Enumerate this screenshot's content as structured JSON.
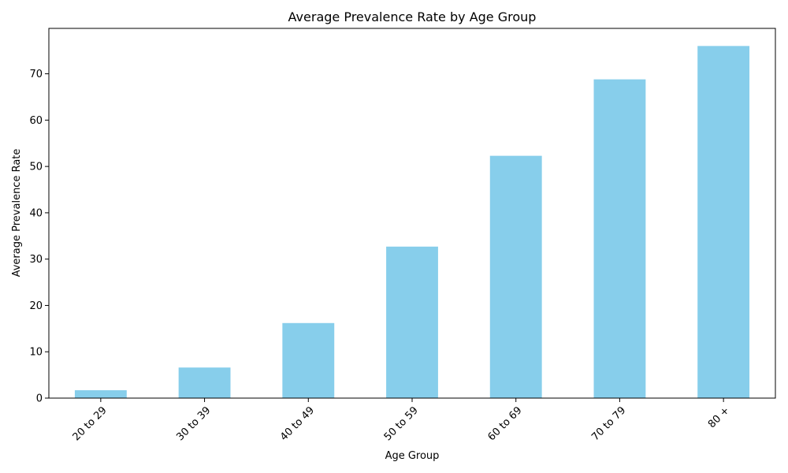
{
  "chart_data": {
    "type": "bar",
    "title": "Average Prevalence Rate by Age Group",
    "xlabel": "Age Group",
    "ylabel": "Average Prevalence Rate",
    "categories": [
      "20 to 29",
      "30 to 39",
      "40 to 49",
      "50 to 59",
      "60 to 69",
      "70 to 79",
      "80 +"
    ],
    "values": [
      1.7,
      6.6,
      16.2,
      32.7,
      52.3,
      68.8,
      76.0
    ],
    "ylim": [
      0,
      79.8
    ],
    "yticks": [
      0,
      10,
      20,
      30,
      40,
      50,
      60,
      70
    ],
    "bar_color": "#87CEEB",
    "grid": false,
    "x_tick_rotation_deg": 45
  }
}
